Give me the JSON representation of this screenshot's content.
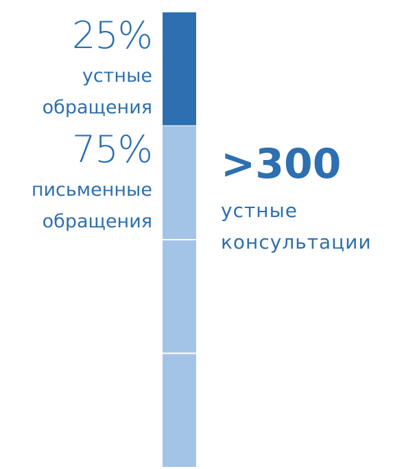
{
  "chart_data": {
    "type": "stacked_bar",
    "series": [
      {
        "name": "устные обращения",
        "color": "#2d6fb0",
        "values": [
          25
        ],
        "value_labels": [
          "25%"
        ]
      },
      {
        "name": "письменные обращения",
        "color": "#a3c4e6",
        "values": [
          75
        ],
        "value_labels": [
          "75%"
        ]
      }
    ],
    "ylim": [
      0,
      100
    ],
    "annotation": {
      "value": ">300",
      "text": "устные консультации"
    }
  }
}
